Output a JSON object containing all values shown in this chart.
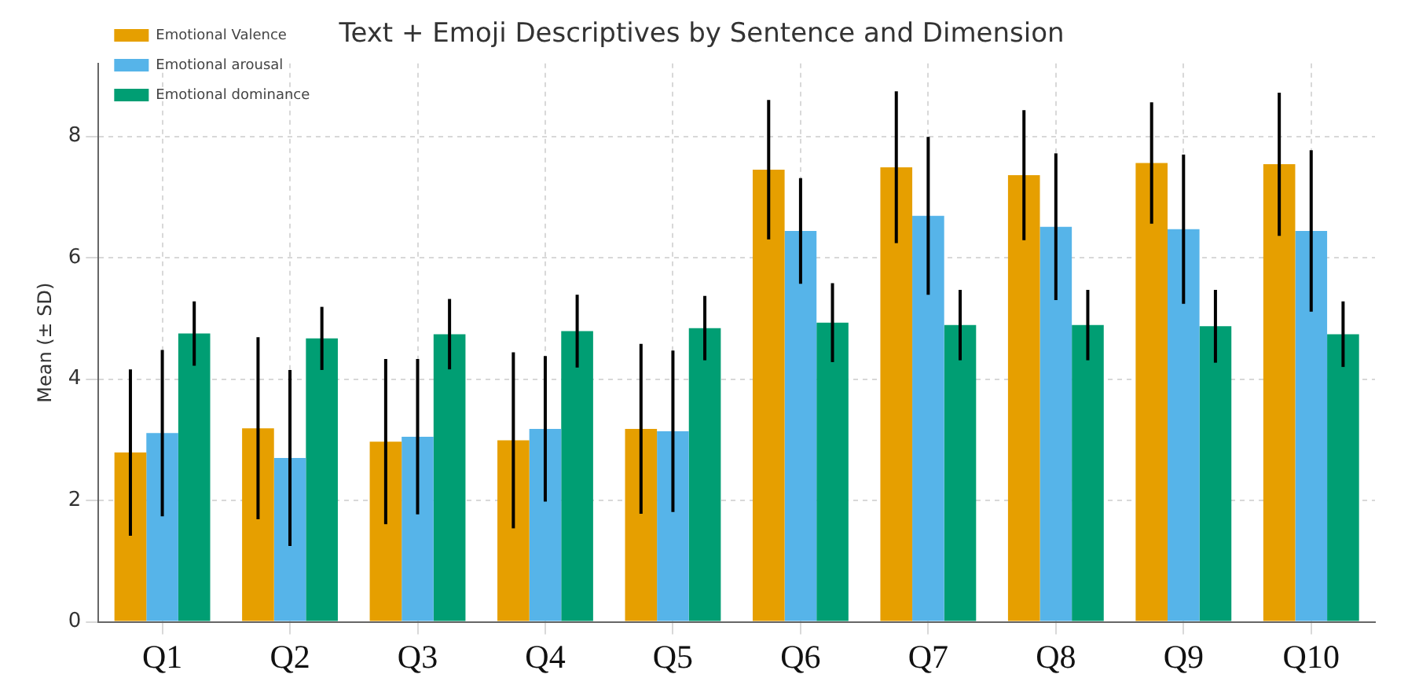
{
  "chart_data": {
    "type": "bar",
    "title": "Text + Emoji Descriptives by Sentence and Dimension",
    "ylabel": "Mean (± SD)",
    "categories": [
      "Q1",
      "Q2",
      "Q3",
      "Q4",
      "Q5",
      "Q6",
      "Q7",
      "Q8",
      "Q9",
      "Q10"
    ],
    "series": [
      {
        "name": "Emotional Valence",
        "color": "#e69f00",
        "values": [
          2.79,
          3.19,
          2.97,
          2.99,
          3.18,
          7.45,
          7.49,
          7.36,
          7.56,
          7.54
        ],
        "errors": [
          1.37,
          1.5,
          1.36,
          1.45,
          1.4,
          1.15,
          1.25,
          1.07,
          1.0,
          1.18
        ]
      },
      {
        "name": "Emotional arousal",
        "color": "#56b4e9",
        "values": [
          3.11,
          2.7,
          3.05,
          3.18,
          3.14,
          6.44,
          6.69,
          6.51,
          6.47,
          6.44
        ],
        "errors": [
          1.37,
          1.45,
          1.28,
          1.2,
          1.33,
          0.87,
          1.3,
          1.21,
          1.23,
          1.33
        ]
      },
      {
        "name": "Emotional dominance",
        "color": "#009e73",
        "values": [
          4.75,
          4.67,
          4.74,
          4.79,
          4.84,
          4.93,
          4.89,
          4.89,
          4.87,
          4.74
        ],
        "errors": [
          0.53,
          0.52,
          0.58,
          0.6,
          0.53,
          0.65,
          0.58,
          0.58,
          0.6,
          0.54
        ]
      }
    ],
    "ylim": [
      0,
      9.2
    ],
    "yticks": [
      0,
      2,
      4,
      6,
      8
    ],
    "grid": true,
    "legend": "top left"
  }
}
